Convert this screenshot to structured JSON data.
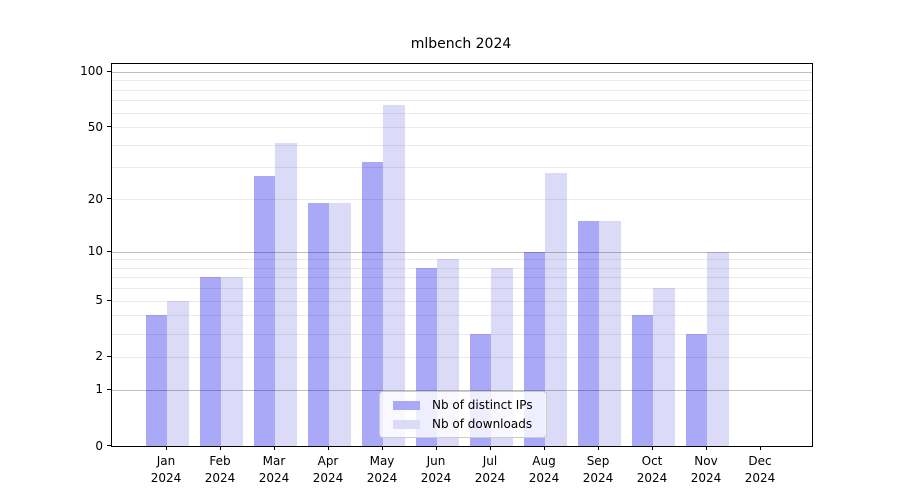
{
  "title": "mlbench 2024",
  "colors": {
    "ips": "#a9a9f7",
    "downloads": "#dbdbf8",
    "grid_major": "rgba(0,0,0,0.25)",
    "grid_minor": "rgba(0,0,0,0.08)",
    "axis": "#000000",
    "legend_border": "#cccccc"
  },
  "legend": {
    "items": [
      {
        "label": "Nb of distinct IPs",
        "color_key": "ips"
      },
      {
        "label": "Nb of downloads",
        "color_key": "downloads"
      }
    ]
  },
  "y_axis": {
    "scale": "log1p",
    "tick_values": [
      0,
      1,
      2,
      5,
      10,
      20,
      50,
      100
    ],
    "tick_labels": [
      "0",
      "1",
      "2",
      "5",
      "10",
      "20",
      "50",
      "100"
    ],
    "major_gridlines": [
      1,
      10,
      100
    ],
    "minor_gridlines": [
      2,
      3,
      4,
      5,
      6,
      7,
      8,
      9,
      20,
      30,
      40,
      50,
      60,
      70,
      80,
      90
    ]
  },
  "x_axis": {
    "categories": [
      {
        "month": "Jan",
        "year": "2024"
      },
      {
        "month": "Feb",
        "year": "2024"
      },
      {
        "month": "Mar",
        "year": "2024"
      },
      {
        "month": "Apr",
        "year": "2024"
      },
      {
        "month": "May",
        "year": "2024"
      },
      {
        "month": "Jun",
        "year": "2024"
      },
      {
        "month": "Jul",
        "year": "2024"
      },
      {
        "month": "Aug",
        "year": "2024"
      },
      {
        "month": "Sep",
        "year": "2024"
      },
      {
        "month": "Oct",
        "year": "2024"
      },
      {
        "month": "Nov",
        "year": "2024"
      },
      {
        "month": "Dec",
        "year": "2024"
      }
    ]
  },
  "chart_data": {
    "type": "bar",
    "title": "mlbench 2024",
    "categories": [
      "Jan 2024",
      "Feb 2024",
      "Mar 2024",
      "Apr 2024",
      "May 2024",
      "Jun 2024",
      "Jul 2024",
      "Aug 2024",
      "Sep 2024",
      "Oct 2024",
      "Nov 2024",
      "Dec 2024"
    ],
    "series": [
      {
        "name": "Nb of distinct IPs",
        "values": [
          4,
          7,
          27,
          19,
          32,
          8,
          3,
          10,
          15,
          4,
          3,
          0
        ]
      },
      {
        "name": "Nb of downloads",
        "values": [
          5,
          7,
          41,
          19,
          66,
          9,
          8,
          28,
          15,
          6,
          10,
          0
        ]
      }
    ],
    "xlabel": "",
    "ylabel": "",
    "yscale": "log1p",
    "ylim": [
      0,
      110
    ],
    "grid": true,
    "legend_position": "lower center"
  }
}
